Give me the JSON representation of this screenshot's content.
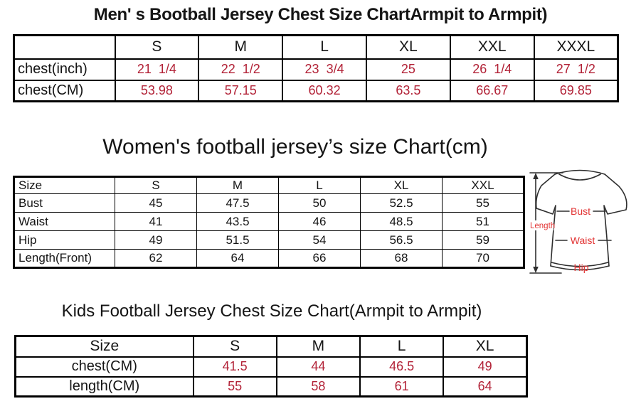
{
  "colors": {
    "value_red": "#b22237",
    "diagram_red": "#e23434",
    "border_black": "#000000",
    "text_black": "#151515"
  },
  "men_chart": {
    "title": "Men' s Bootball Jersey Chest Size ChartArmpit to Armpit)",
    "columns": [
      "",
      "S",
      "M",
      "L",
      "XL",
      "XXL",
      "XXXL"
    ],
    "rows": [
      {
        "label": "chest(inch)",
        "values": [
          "21  1/4",
          "22  1/2",
          "23  3/4",
          "25",
          "26  1/4",
          "27  1/2"
        ]
      },
      {
        "label": "chest(CM)",
        "values": [
          "53.98",
          "57.15",
          "60.32",
          "63.5",
          "66.67",
          "69.85"
        ]
      }
    ]
  },
  "women_chart": {
    "title": "Women's football jersey’s size Chart(cm)",
    "columns": [
      "Size",
      "S",
      "M",
      "L",
      "XL",
      "XXL"
    ],
    "rows": [
      {
        "label": "Bust",
        "values": [
          "45",
          "47.5",
          "50",
          "52.5",
          "55"
        ]
      },
      {
        "label": "Waist",
        "values": [
          "41",
          "43.5",
          "46",
          "48.5",
          "51"
        ]
      },
      {
        "label": "Hip",
        "values": [
          "49",
          "51.5",
          "54",
          "56.5",
          "59"
        ]
      },
      {
        "label": "Length(Front)",
        "values": [
          "62",
          "64",
          "66",
          "68",
          "70"
        ]
      }
    ]
  },
  "kids_chart": {
    "title": "Kids Football Jersey Chest Size Chart(Armpit to Armpit)",
    "columns": [
      "Size",
      "S",
      "M",
      "L",
      "XL"
    ],
    "rows": [
      {
        "label": "chest(CM)",
        "values": [
          "41.5",
          "44",
          "46.5",
          "49"
        ]
      },
      {
        "label": "length(CM)",
        "values": [
          "55",
          "58",
          "61",
          "64"
        ]
      }
    ]
  },
  "diagram": {
    "length_label": "Length",
    "bust_label": "Bust",
    "waist_label": "Waist",
    "hip_label": "Hip"
  }
}
